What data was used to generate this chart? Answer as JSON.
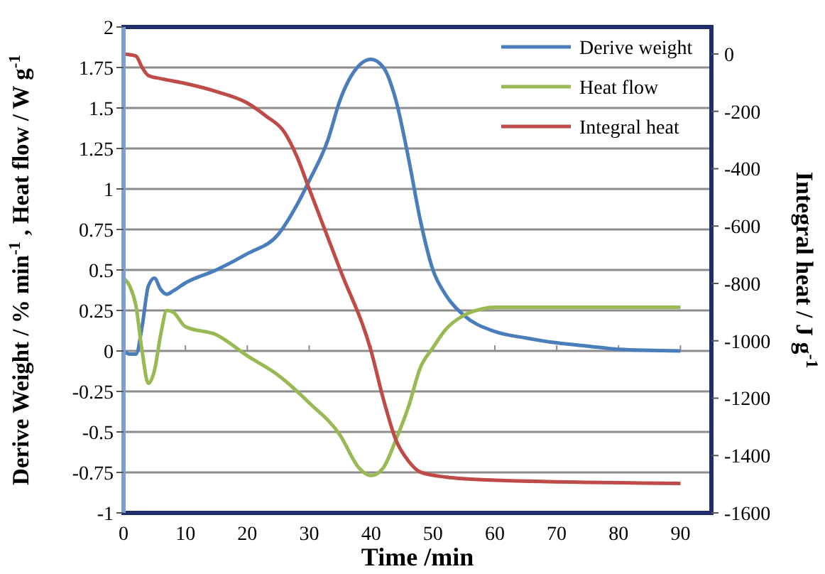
{
  "chart_data": {
    "type": "line",
    "xlabel": "Time /min",
    "ylabel": "Derive Weight  / % min$^{-1}$ , Heat flow / W g$^{-1}$",
    "y2label": "Integral heat / J g$^{-1}$",
    "xlim": [
      0,
      95
    ],
    "xticks": [
      0,
      10,
      20,
      30,
      40,
      50,
      60,
      70,
      80,
      90
    ],
    "ylim": [
      -1,
      2
    ],
    "yticks": [
      -1,
      -0.75,
      -0.5,
      -0.25,
      0,
      0.25,
      0.5,
      0.75,
      1,
      1.25,
      1.5,
      1.75,
      2
    ],
    "y2lim": [
      -1600,
      94
    ],
    "y2ticks": [
      -1600,
      -1400,
      -1200,
      -1000,
      -800,
      -600,
      -400,
      -200,
      0
    ],
    "grid": "y",
    "legend": "top right",
    "line_style": "solid",
    "marker": "none",
    "series": [
      {
        "name": "Derive weight",
        "color": "#4a7ebb",
        "x": [
          0,
          1,
          2,
          3,
          4,
          5,
          6,
          7,
          8,
          10,
          15,
          20,
          25,
          28,
          30,
          33,
          35,
          38,
          40,
          42,
          44,
          46,
          48,
          50,
          52,
          55,
          60,
          65,
          70,
          75,
          80,
          90
        ],
        "values": [
          0,
          -0.02,
          -0.02,
          0.15,
          0.4,
          0.45,
          0.38,
          0.35,
          0.37,
          0.42,
          0.5,
          0.6,
          0.72,
          0.9,
          1.05,
          1.3,
          1.55,
          1.76,
          1.8,
          1.75,
          1.55,
          1.2,
          0.8,
          0.5,
          0.35,
          0.22,
          0.12,
          0.08,
          0.05,
          0.03,
          0.01,
          0
        ]
      },
      {
        "name": "Heat flow",
        "color": "#98b954",
        "x": [
          0,
          1,
          2,
          3,
          4,
          5,
          6,
          7,
          8,
          10,
          15,
          20,
          25,
          30,
          35,
          38,
          40,
          42,
          44,
          46,
          48,
          50,
          52,
          55,
          58,
          60,
          90
        ],
        "values": [
          0.45,
          0.4,
          0.28,
          0,
          -0.2,
          -0.12,
          0.1,
          0.25,
          0.24,
          0.15,
          0.1,
          -0.03,
          -0.15,
          -0.32,
          -0.52,
          -0.72,
          -0.77,
          -0.72,
          -0.55,
          -0.35,
          -0.1,
          0.02,
          0.13,
          0.22,
          0.26,
          0.27,
          0.27
        ]
      },
      {
        "name": "Integral heat",
        "color": "#be4b48",
        "axis": "y2",
        "x": [
          0,
          2,
          3,
          4,
          6,
          10,
          15,
          20,
          23,
          26,
          28,
          30,
          35,
          40,
          42,
          44,
          46,
          48,
          52,
          60,
          90
        ],
        "values": [
          0,
          -7,
          -47,
          -75,
          -86,
          -103,
          -131,
          -171,
          -216,
          -273,
          -357,
          -470,
          -752,
          -1035,
          -1204,
          -1345,
          -1418,
          -1458,
          -1475,
          -1486,
          -1497
        ]
      }
    ]
  }
}
